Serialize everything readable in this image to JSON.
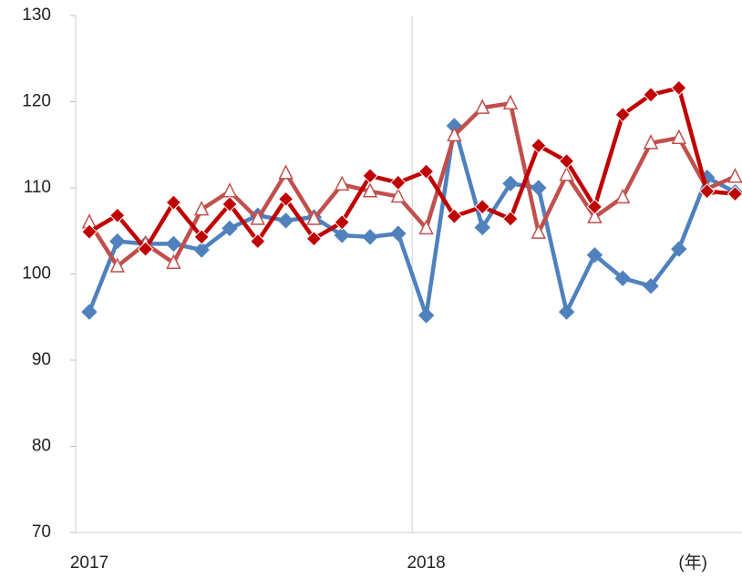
{
  "chart_data": {
    "type": "line",
    "categories": [
      "2017",
      null,
      null,
      null,
      null,
      null,
      null,
      null,
      null,
      null,
      null,
      null,
      "2018",
      null,
      null,
      null,
      null,
      null,
      null,
      null,
      null,
      null,
      null,
      null
    ],
    "x_axis_annotation": "(年)",
    "ylim": [
      70,
      130
    ],
    "yticks": [
      70,
      80,
      90,
      100,
      110,
      120,
      130
    ],
    "series": [
      {
        "color": "#4f81bd",
        "marker": "diamond",
        "values": [
          95.6,
          103.8,
          103.5,
          103.5,
          102.8,
          105.3,
          106.8,
          106.2,
          106.6,
          104.5,
          104.3,
          104.7,
          95.2,
          117.2,
          105.4,
          110.5,
          110.0,
          95.6,
          102.2,
          99.5,
          98.6,
          102.9,
          111.2,
          109.5
        ]
      },
      {
        "color": "#c0504d",
        "marker": "triangle",
        "values": [
          106.0,
          100.9,
          103.5,
          101.3,
          107.5,
          109.6,
          106.4,
          111.7,
          106.4,
          110.4,
          109.6,
          109.0,
          105.3,
          116.1,
          119.3,
          119.8,
          104.8,
          111.5,
          106.6,
          108.9,
          115.2,
          115.8,
          109.9,
          111.3
        ]
      },
      {
        "color": "#c00000",
        "marker": "diamond",
        "values": [
          104.9,
          106.8,
          102.9,
          108.3,
          104.3,
          108.1,
          103.8,
          108.7,
          104.1,
          106.0,
          111.4,
          110.6,
          111.9,
          106.7,
          107.8,
          106.4,
          114.9,
          113.1,
          107.8,
          118.5,
          120.8,
          121.6,
          109.6,
          109.3
        ]
      }
    ]
  }
}
